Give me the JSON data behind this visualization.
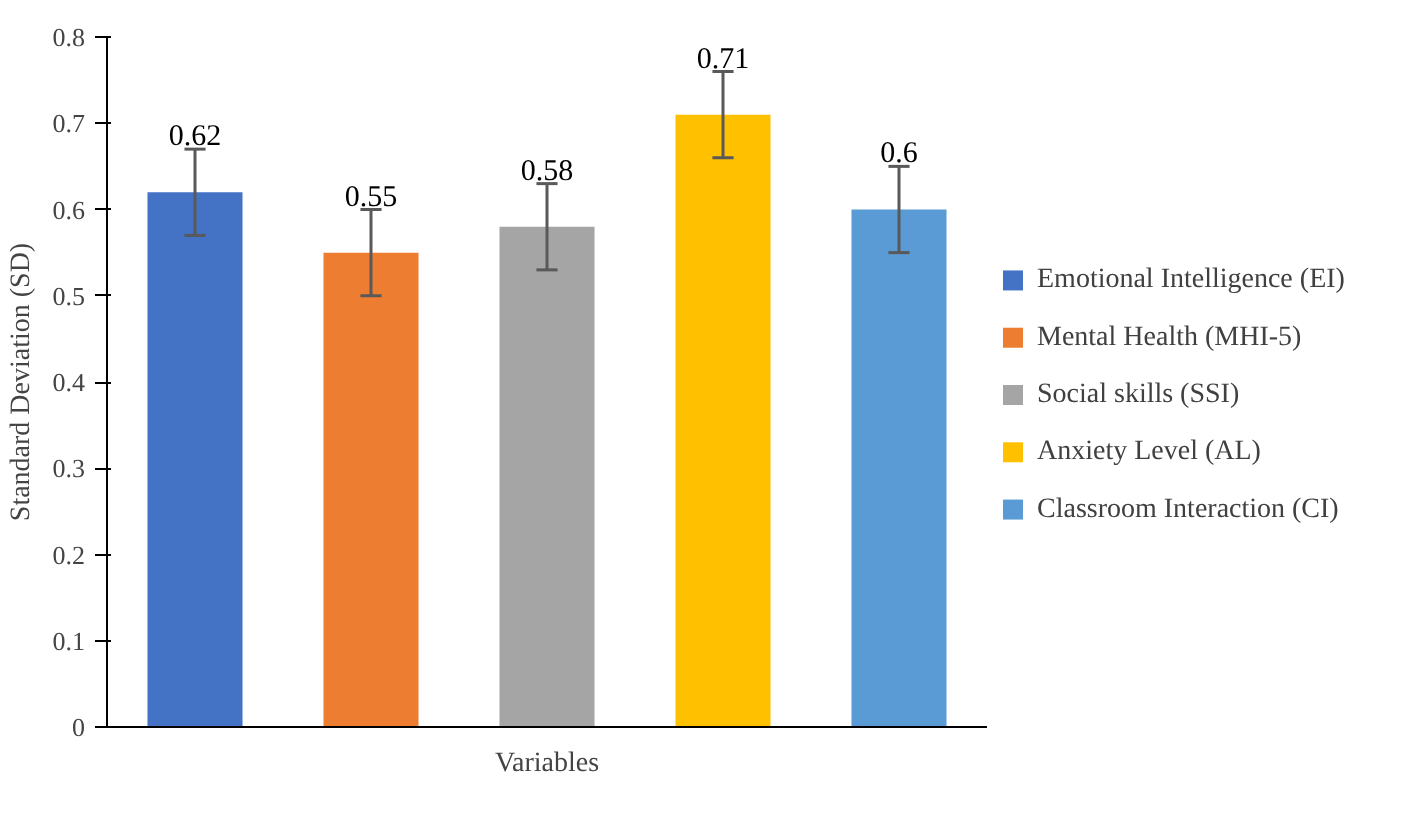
{
  "chart_data": {
    "type": "bar",
    "xlabel": "Variables",
    "ylabel": "Standard Deviation (SD)",
    "categories": [
      null,
      null,
      null,
      null,
      null
    ],
    "series": [
      {
        "name": "Emotional Intelligence (EI)",
        "color": "#4472c4",
        "values": [
          0.62,
          null,
          null,
          null,
          null
        ],
        "errors": [
          0.05,
          null,
          null,
          null,
          null
        ]
      },
      {
        "name": "Mental Health (MHI-5)",
        "color": "#ed7d31",
        "values": [
          null,
          0.55,
          null,
          null,
          null
        ],
        "errors": [
          null,
          0.05,
          null,
          null,
          null
        ]
      },
      {
        "name": "Social skills (SSI)",
        "color": "#a5a5a5",
        "values": [
          null,
          null,
          0.58,
          null,
          null
        ],
        "errors": [
          null,
          null,
          0.05,
          null,
          null
        ]
      },
      {
        "name": "Anxiety Level (AL)",
        "color": "#ffc000",
        "values": [
          null,
          null,
          null,
          0.71,
          null
        ],
        "errors": [
          null,
          null,
          null,
          0.05,
          null
        ]
      },
      {
        "name": "Classroom Interaction (CI)",
        "color": "#5b9bd5",
        "values": [
          null,
          null,
          null,
          null,
          0.6
        ],
        "errors": [
          null,
          null,
          null,
          null,
          0.05
        ]
      }
    ],
    "ylim": [
      0,
      0.8
    ],
    "yticks": [
      0,
      0.1,
      0.2,
      0.3,
      0.4,
      0.5,
      0.6,
      0.7,
      0.8
    ],
    "data_labels": true,
    "grid": false,
    "legend": "right",
    "tick_labels": "y"
  }
}
